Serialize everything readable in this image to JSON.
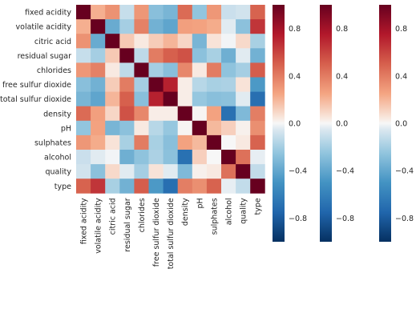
{
  "chart_data": {
    "type": "heatmap",
    "labels": [
      "fixed acidity",
      "volatile acidity",
      "citric acid",
      "residual sugar",
      "chlorides",
      "free sulfur dioxide",
      "total sulfur dioxide",
      "density",
      "pH",
      "sulphates",
      "alcohol",
      "quality",
      "type"
    ],
    "values": [
      [
        1.0,
        0.22,
        0.32,
        -0.11,
        0.3,
        -0.28,
        -0.33,
        0.46,
        -0.25,
        0.3,
        -0.1,
        -0.08,
        0.49
      ],
      [
        0.22,
        1.0,
        -0.38,
        -0.2,
        0.38,
        -0.35,
        -0.41,
        0.27,
        0.26,
        0.23,
        -0.04,
        -0.27,
        0.65
      ],
      [
        0.32,
        -0.38,
        1.0,
        0.14,
        0.04,
        0.13,
        0.2,
        0.1,
        -0.33,
        0.06,
        -0.01,
        0.09,
        -0.19
      ],
      [
        -0.11,
        -0.2,
        0.14,
        1.0,
        -0.13,
        0.4,
        0.5,
        0.55,
        -0.27,
        -0.19,
        -0.36,
        -0.04,
        -0.35
      ],
      [
        0.3,
        0.38,
        0.04,
        -0.13,
        1.0,
        -0.2,
        -0.28,
        0.36,
        0.04,
        0.4,
        -0.26,
        -0.2,
        0.51
      ],
      [
        -0.28,
        -0.35,
        0.13,
        0.4,
        -0.2,
        1.0,
        0.72,
        0.03,
        -0.15,
        -0.19,
        -0.18,
        0.06,
        -0.47
      ],
      [
        -0.33,
        -0.41,
        0.2,
        0.5,
        -0.28,
        0.72,
        1.0,
        0.03,
        -0.24,
        -0.28,
        -0.27,
        -0.04,
        -0.7
      ],
      [
        0.46,
        0.27,
        0.1,
        0.55,
        0.36,
        0.03,
        0.03,
        1.0,
        0.01,
        0.26,
        -0.69,
        -0.31,
        0.39
      ],
      [
        -0.25,
        0.26,
        -0.33,
        -0.27,
        0.04,
        -0.15,
        -0.24,
        0.01,
        1.0,
        0.19,
        0.12,
        0.02,
        0.33
      ],
      [
        0.3,
        0.23,
        0.06,
        -0.19,
        0.4,
        -0.19,
        -0.28,
        0.26,
        0.19,
        1.0,
        -0.0,
        0.04,
        0.49
      ],
      [
        -0.1,
        -0.04,
        -0.01,
        -0.36,
        -0.26,
        -0.18,
        -0.27,
        -0.69,
        0.12,
        -0.0,
        1.0,
        0.44,
        -0.03
      ],
      [
        -0.08,
        -0.27,
        0.09,
        -0.04,
        -0.2,
        0.06,
        -0.04,
        -0.31,
        0.02,
        0.04,
        0.44,
        1.0,
        -0.12
      ],
      [
        0.49,
        0.65,
        -0.19,
        -0.35,
        0.51,
        -0.47,
        -0.7,
        0.39,
        0.33,
        0.49,
        -0.03,
        -0.12,
        1.0
      ]
    ],
    "vmin": -1.0,
    "vmax": 1.0,
    "colormap": "RdBu_r",
    "colorbar_count": 3,
    "colorbar_ticks": [
      0.8,
      0.4,
      0.0,
      -0.4,
      -0.8
    ],
    "colorbar_tick_labels": [
      "0.8",
      "0.4",
      "0.0",
      "−0.4",
      "−0.8"
    ]
  }
}
